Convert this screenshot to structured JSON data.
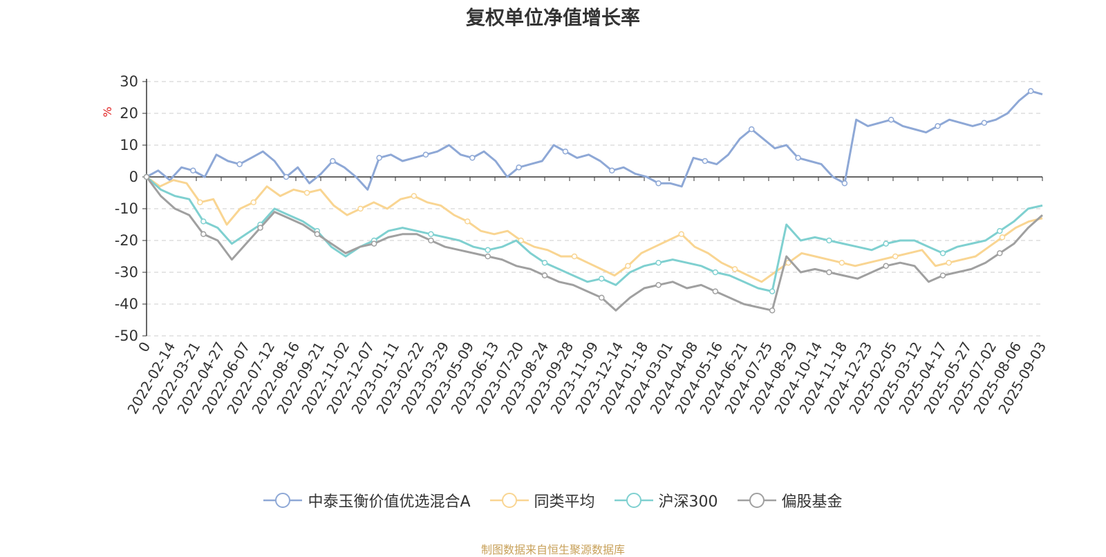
{
  "title": "复权单位净值增长率",
  "source_note": "制图数据来自恒生聚源数据库",
  "chart_data": {
    "type": "line",
    "ylabel": "%",
    "ylim": [
      -50,
      30
    ],
    "yticks": [
      30,
      20,
      10,
      0,
      -10,
      -20,
      -30,
      -40,
      -50
    ],
    "xtick_labels": [
      "0",
      "2022-02-14",
      "2022-03-21",
      "2022-04-27",
      "2022-06-07",
      "2022-07-12",
      "2022-08-16",
      "2022-09-21",
      "2022-11-02",
      "2022-12-07",
      "2023-01-11",
      "2023-02-22",
      "2023-03-29",
      "2023-05-09",
      "2023-06-13",
      "2023-07-20",
      "2023-08-24",
      "2023-09-28",
      "2023-11-09",
      "2023-12-14",
      "2024-01-18",
      "2024-03-01",
      "2024-04-08",
      "2024-05-16",
      "2024-06-21",
      "2024-07-25",
      "2024-08-29",
      "2024-10-14",
      "2024-11-18",
      "2024-12-23",
      "2025-02-05",
      "2025-03-12",
      "2025-04-17",
      "2025-05-27",
      "2025-07-02",
      "2025-08-06",
      "2025-09-03"
    ],
    "grid": true,
    "legend_position": "bottom",
    "series": [
      {
        "name": "中泰玉衡价值优选混合A",
        "color": "#8ea8d6",
        "values": [
          0,
          2,
          -1,
          3,
          2,
          0,
          7,
          5,
          4,
          6,
          8,
          5,
          0,
          3,
          -2,
          1,
          5,
          3,
          0,
          -4,
          6,
          7,
          5,
          6,
          7,
          8,
          10,
          7,
          6,
          8,
          5,
          0,
          3,
          4,
          5,
          10,
          8,
          6,
          7,
          5,
          2,
          3,
          1,
          0,
          -2,
          -2,
          -3,
          6,
          5,
          4,
          7,
          12,
          15,
          12,
          9,
          10,
          6,
          5,
          4,
          0,
          -2,
          18,
          16,
          17,
          18,
          16,
          15,
          14,
          16,
          18,
          17,
          16,
          17,
          18,
          20,
          24,
          27,
          26
        ]
      },
      {
        "name": "同类平均",
        "color": "#f9d592",
        "values": [
          0,
          -3,
          -1,
          -2,
          -8,
          -7,
          -15,
          -10,
          -8,
          -3,
          -6,
          -4,
          -5,
          -4,
          -9,
          -12,
          -10,
          -8,
          -10,
          -7,
          -6,
          -8,
          -9,
          -12,
          -14,
          -17,
          -18,
          -17,
          -20,
          -22,
          -23,
          -25,
          -25,
          -27,
          -29,
          -31,
          -28,
          -24,
          -22,
          -20,
          -18,
          -22,
          -24,
          -27,
          -29,
          -31,
          -33,
          -30,
          -27,
          -24,
          -25,
          -26,
          -27,
          -28,
          -27,
          -26,
          -25,
          -24,
          -23,
          -28,
          -27,
          -26,
          -25,
          -22,
          -19,
          -16,
          -14,
          -13
        ]
      },
      {
        "name": "沪深300",
        "color": "#7fd0d0",
        "values": [
          0,
          -4,
          -6,
          -7,
          -14,
          -16,
          -21,
          -18,
          -15,
          -10,
          -12,
          -14,
          -17,
          -22,
          -25,
          -22,
          -20,
          -17,
          -16,
          -17,
          -18,
          -19,
          -20,
          -22,
          -23,
          -22,
          -20,
          -24,
          -27,
          -29,
          -31,
          -33,
          -32,
          -34,
          -30,
          -28,
          -27,
          -26,
          -27,
          -28,
          -30,
          -31,
          -33,
          -35,
          -36,
          -15,
          -20,
          -19,
          -20,
          -21,
          -22,
          -23,
          -21,
          -20,
          -20,
          -22,
          -24,
          -22,
          -21,
          -20,
          -17,
          -14,
          -10,
          -9
        ]
      },
      {
        "name": "偏股基金",
        "color": "#a0a0a0",
        "values": [
          0,
          -6,
          -10,
          -12,
          -18,
          -20,
          -26,
          -21,
          -16,
          -11,
          -13,
          -15,
          -18,
          -21,
          -24,
          -22,
          -21,
          -19,
          -18,
          -18,
          -20,
          -22,
          -23,
          -24,
          -25,
          -26,
          -28,
          -29,
          -31,
          -33,
          -34,
          -36,
          -38,
          -42,
          -38,
          -35,
          -34,
          -33,
          -35,
          -34,
          -36,
          -38,
          -40,
          -41,
          -42,
          -25,
          -30,
          -29,
          -30,
          -31,
          -32,
          -30,
          -28,
          -27,
          -28,
          -33,
          -31,
          -30,
          -29,
          -27,
          -24,
          -21,
          -16,
          -12
        ]
      }
    ]
  }
}
